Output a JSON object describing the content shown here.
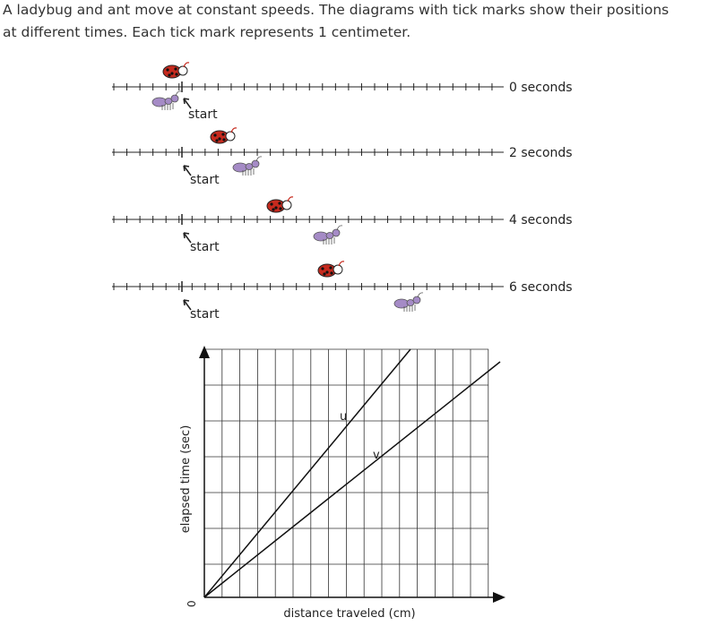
{
  "problem": {
    "lines": [
      "A ladybug and ant move at constant speeds. The diagrams with tick marks show their positions",
      "at different times. Each tick mark represents 1 centimeter."
    ]
  },
  "number_lines": [
    {
      "label": "0 seconds",
      "start_label": "start"
    },
    {
      "label": "2 seconds",
      "start_label": "start"
    },
    {
      "label": "4 seconds",
      "start_label": "start"
    },
    {
      "label": "6 seconds",
      "start_label": "start"
    }
  ],
  "graph": {
    "y_label": "elapsed time (sec)",
    "x_label": "distance traveled (cm)",
    "origin_label": "0",
    "lines": [
      {
        "label": "u"
      },
      {
        "label": "v"
      }
    ]
  }
}
